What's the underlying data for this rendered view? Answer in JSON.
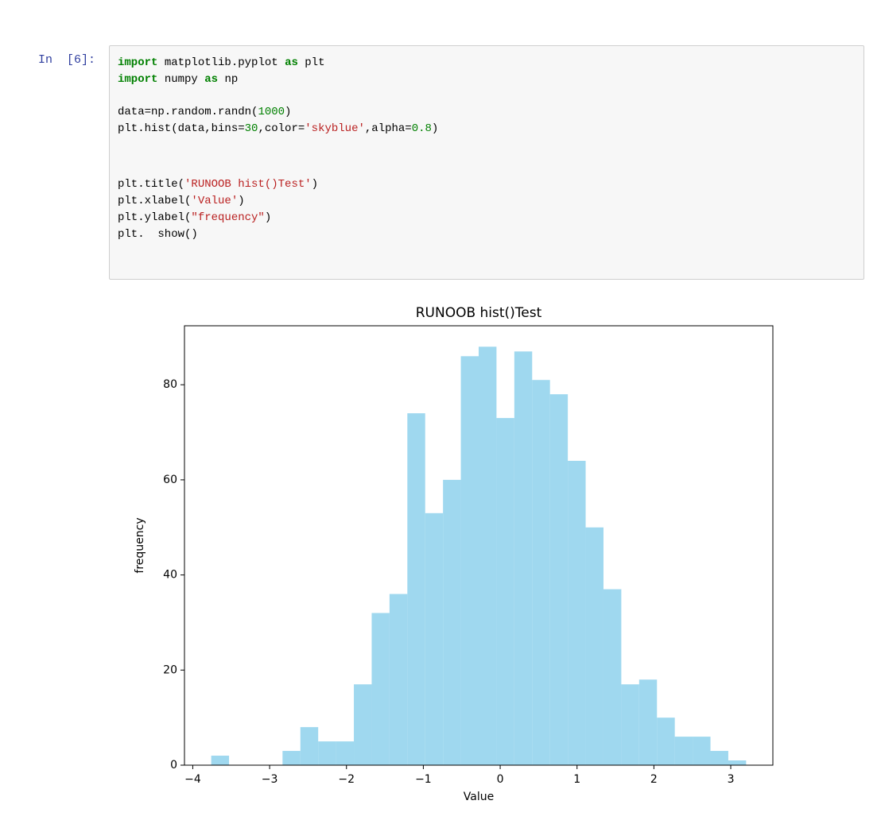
{
  "cell": {
    "prompt": "In  [6]:",
    "code_blocks": [
      [
        [
          {
            "text": "import",
            "kind": "keyword"
          },
          {
            "text": " matplotlib.pyplot ",
            "kind": "plain"
          },
          {
            "text": "as",
            "kind": "keyword"
          },
          {
            "text": " plt",
            "kind": "plain"
          }
        ],
        [
          {
            "text": "import",
            "kind": "keyword"
          },
          {
            "text": " numpy ",
            "kind": "plain"
          },
          {
            "text": "as",
            "kind": "keyword"
          },
          {
            "text": " np",
            "kind": "plain"
          }
        ]
      ],
      [
        [
          {
            "text": "data=np.random.randn(",
            "kind": "plain"
          },
          {
            "text": "1000",
            "kind": "number"
          },
          {
            "text": ")",
            "kind": "plain"
          }
        ],
        [
          {
            "text": "plt.hist(data,bins=",
            "kind": "plain"
          },
          {
            "text": "30",
            "kind": "number"
          },
          {
            "text": ",color=",
            "kind": "plain"
          },
          {
            "text": "'skyblue'",
            "kind": "string"
          },
          {
            "text": ",alpha=",
            "kind": "plain"
          },
          {
            "text": "0.8",
            "kind": "number"
          },
          {
            "text": ")",
            "kind": "plain"
          }
        ]
      ],
      [
        [
          {
            "text": "plt.title(",
            "kind": "plain"
          },
          {
            "text": "'RUNOOB hist()Test'",
            "kind": "string"
          },
          {
            "text": ")",
            "kind": "plain"
          }
        ],
        [
          {
            "text": "plt.xlabel(",
            "kind": "plain"
          },
          {
            "text": "'Value'",
            "kind": "string"
          },
          {
            "text": ")",
            "kind": "plain"
          }
        ],
        [
          {
            "text": "plt.ylabel(",
            "kind": "plain"
          },
          {
            "text": "\"frequency\"",
            "kind": "string"
          },
          {
            "text": ")",
            "kind": "plain"
          }
        ],
        [
          {
            "text": "plt.  show()",
            "kind": "plain"
          }
        ]
      ]
    ]
  },
  "chart_data": {
    "type": "histogram",
    "title": "RUNOOB hist()Test",
    "x_label": "Value",
    "y_label": "frequency",
    "bins": [
      -3.76,
      -3.528,
      -3.296,
      -3.064,
      -2.832,
      -2.6,
      -2.368,
      -2.136,
      -1.904,
      -1.672,
      -1.44,
      -1.208,
      -0.976,
      -0.744,
      -0.512,
      -0.28,
      -0.048,
      0.184,
      0.416,
      0.648,
      0.88,
      1.112,
      1.344,
      1.576,
      1.808,
      2.04,
      2.272,
      2.504,
      2.736,
      2.968,
      3.2
    ],
    "values": [
      2,
      0,
      0,
      0,
      3,
      8,
      5,
      5,
      17,
      32,
      36,
      74,
      53,
      60,
      86,
      88,
      73,
      87,
      81,
      78,
      64,
      50,
      37,
      17,
      18,
      10,
      6,
      6,
      3,
      1
    ],
    "color": "#87ceeb",
    "alpha": 0.8,
    "xlim": [
      -4.108,
      3.548
    ],
    "ylim": [
      0,
      92.4
    ],
    "xticks": [
      {
        "value": -4,
        "label": "−4"
      },
      {
        "value": -3,
        "label": "−3"
      },
      {
        "value": -2,
        "label": "−2"
      },
      {
        "value": -1,
        "label": "−1"
      },
      0,
      1,
      2,
      3
    ],
    "yticks": [
      0,
      20,
      40,
      60,
      80
    ]
  }
}
